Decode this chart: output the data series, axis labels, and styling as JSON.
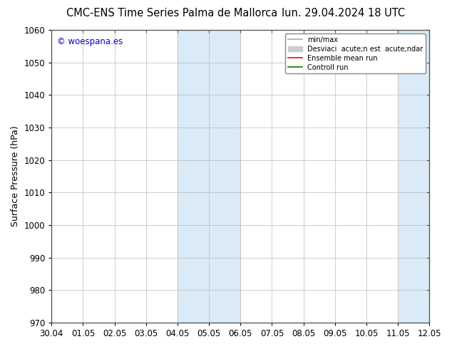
{
  "title_left": "CMC-ENS Time Series Palma de Mallorca",
  "title_right": "lun. 29.04.2024 18 UTC",
  "ylabel": "Surface Pressure (hPa)",
  "watermark": "© woespana.es",
  "watermark_color": "#0000cc",
  "ylim": [
    970,
    1060
  ],
  "yticks": [
    970,
    980,
    990,
    1000,
    1010,
    1020,
    1030,
    1040,
    1050,
    1060
  ],
  "xtick_labels": [
    "30.04",
    "01.05",
    "02.05",
    "03.05",
    "04.05",
    "05.05",
    "06.05",
    "07.05",
    "08.05",
    "09.05",
    "10.05",
    "11.05",
    "12.05"
  ],
  "shaded_regions": [
    {
      "xstart": 4,
      "xend": 6,
      "color": "#daeaf7"
    },
    {
      "xstart": 11,
      "xend": 13,
      "color": "#daeaf7"
    }
  ],
  "legend_label1": "min/max",
  "legend_label2": "Desviaci  acute;n est  acute;ndar",
  "legend_label3": "Ensemble mean run",
  "legend_label4": "Controll run",
  "legend_color1": "#aaaaaa",
  "legend_color2": "#cccccc",
  "legend_color3": "#ff0000",
  "legend_color4": "#008000",
  "bg_color": "#ffffff",
  "plot_bg_color": "#ffffff",
  "grid_color": "#bbbbbb",
  "tick_label_fontsize": 8.5,
  "title_fontsize": 10.5,
  "axis_label_fontsize": 9,
  "watermark_fontsize": 8.5
}
